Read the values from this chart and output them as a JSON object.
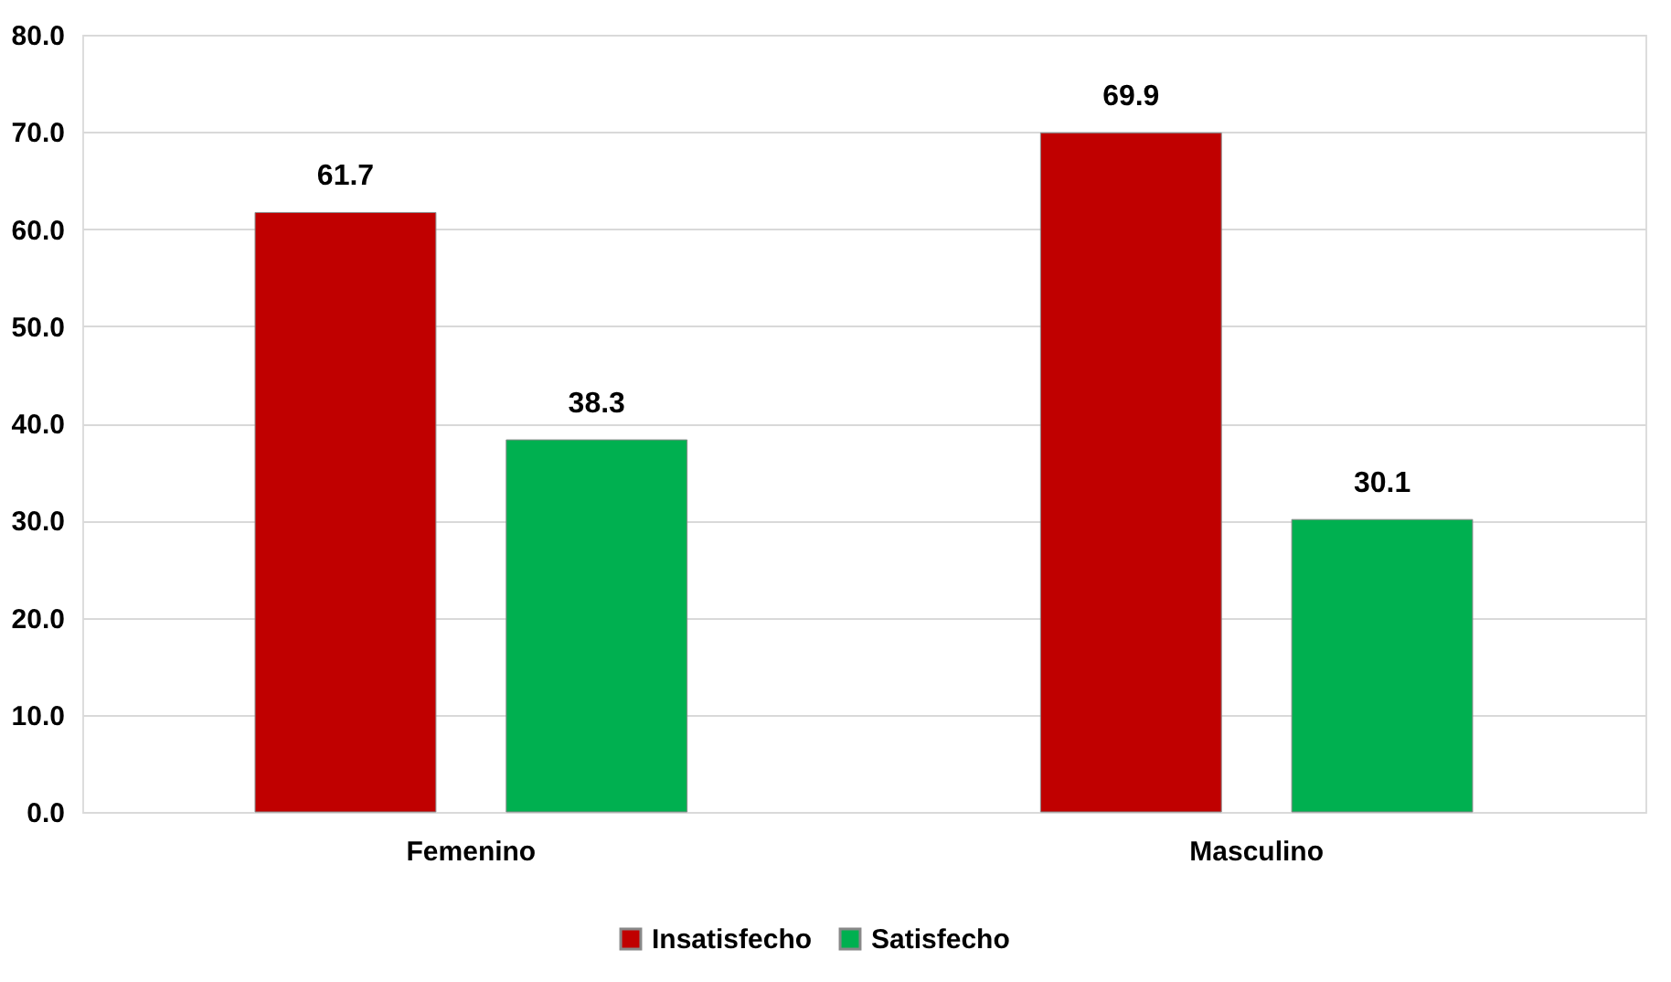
{
  "chart_data": {
    "type": "bar",
    "categories": [
      "Femenino",
      "Masculino"
    ],
    "series": [
      {
        "name": "Insatisfecho",
        "color": "#c00000",
        "values": [
          61.7,
          69.9
        ]
      },
      {
        "name": "Satisfecho",
        "color": "#00b050",
        "values": [
          38.3,
          30.1
        ]
      }
    ],
    "ylim": [
      0,
      80
    ],
    "yticks": [
      {
        "value": 0,
        "label": "0.0"
      },
      {
        "value": 10,
        "label": "10.0"
      },
      {
        "value": 20,
        "label": "20.0"
      },
      {
        "value": 30,
        "label": "30.0"
      },
      {
        "value": 40,
        "label": "40.0"
      },
      {
        "value": 50,
        "label": "50.0"
      },
      {
        "value": 60,
        "label": "60.0"
      },
      {
        "value": 70,
        "label": "70.0"
      },
      {
        "value": 80,
        "label": "80.0"
      }
    ],
    "grid": "y",
    "legend": "bottom",
    "data_labels": true
  }
}
